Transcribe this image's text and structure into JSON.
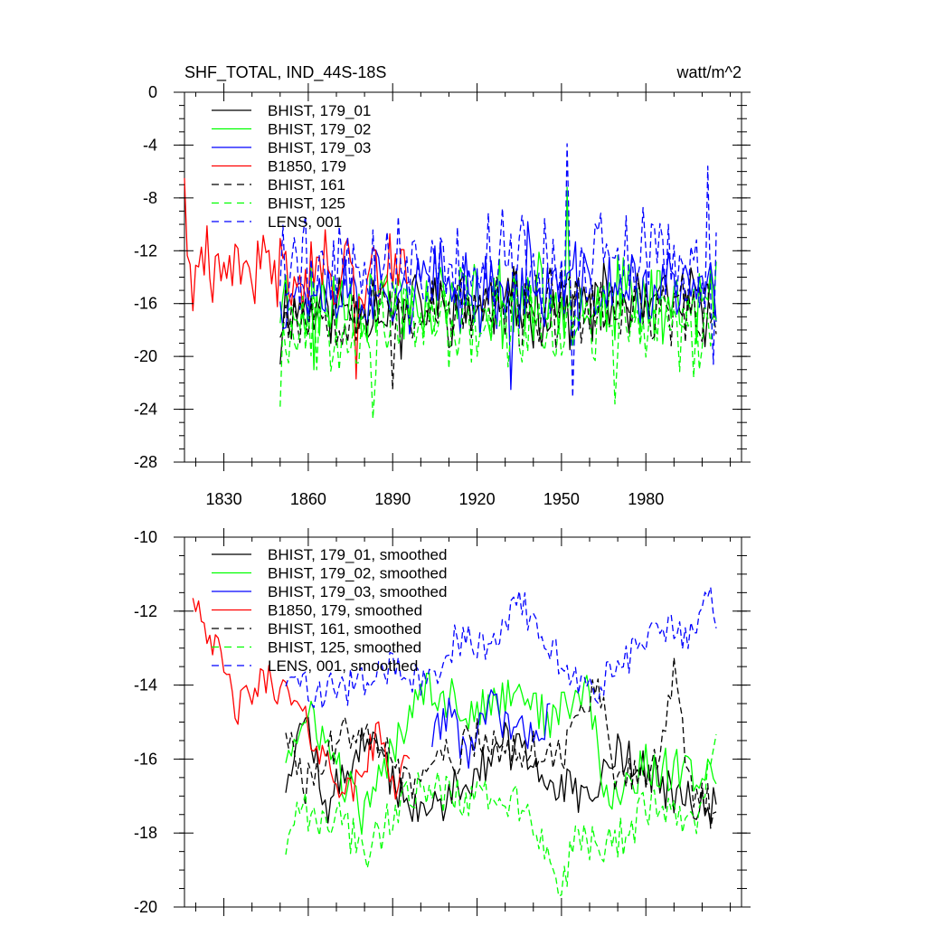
{
  "chart_data": [
    {
      "type": "line",
      "title": "SHF_TOTAL, IND_44S-18S",
      "units": "watt/m^2",
      "xlim": [
        1816,
        2014
      ],
      "ylim": [
        -28,
        0
      ],
      "x_ticks": [
        1830,
        1860,
        1890,
        1920,
        1950,
        1980
      ],
      "x_tick_labels": [
        "1830",
        "1860",
        "1890",
        "1920",
        "1950",
        "1980"
      ],
      "y_ticks": [
        0,
        -4,
        -8,
        -12,
        -16,
        -20,
        -24,
        -28
      ],
      "y_tick_labels": [
        "0",
        "-4",
        "-8",
        "-12",
        "-16",
        "-20",
        "-24",
        "-28"
      ],
      "legend_position": "top-left",
      "series": [
        {
          "name": "BHIST, 179_01",
          "color": "#000000",
          "dashed": false,
          "x_start": 1850,
          "x_end": 2005,
          "mean": -16.2,
          "amplitude": 2.3,
          "seed": 11,
          "peaks": [
            {
              "x": 1850,
              "y": -20.6
            },
            {
              "x": 1893,
              "y": -20.2
            }
          ]
        },
        {
          "name": "BHIST, 179_02",
          "color": "#00ff00",
          "dashed": false,
          "x_start": 1850,
          "x_end": 2005,
          "mean": -15.8,
          "amplitude": 2.6,
          "seed": 23,
          "peaks": [
            {
              "x": 1952,
              "y": -7.2
            },
            {
              "x": 1862,
              "y": -21.0
            }
          ]
        },
        {
          "name": "BHIST, 179_03",
          "color": "#0000ff",
          "dashed": false,
          "x_start": 1850,
          "x_end": 2005,
          "mean": -14.9,
          "amplitude": 2.6,
          "seed": 37,
          "peaks": [
            {
              "x": 1932,
              "y": -22.5
            },
            {
              "x": 1938,
              "y": -9.8
            }
          ]
        },
        {
          "name": "B1850, 179",
          "color": "#ff0000",
          "dashed": false,
          "x_start": 1816,
          "x_end": 1896,
          "mean": -13.5,
          "amplitude": 2.4,
          "seed": 41,
          "peaks": [
            {
              "x": 1816,
              "y": -6.5
            },
            {
              "x": 1877,
              "y": -21.7
            },
            {
              "x": 1826,
              "y": -15.9
            }
          ]
        },
        {
          "name": "BHIST, 161",
          "color": "#000000",
          "dashed": true,
          "x_start": 1850,
          "x_end": 2005,
          "mean": -16.5,
          "amplitude": 2.3,
          "seed": 53,
          "peaks": [
            {
              "x": 1890,
              "y": -22.5
            }
          ]
        },
        {
          "name": "BHIST, 125",
          "color": "#00ff00",
          "dashed": true,
          "x_start": 1850,
          "x_end": 2005,
          "mean": -17.6,
          "amplitude": 2.8,
          "seed": 67,
          "peaks": [
            {
              "x": 1850,
              "y": -23.8
            },
            {
              "x": 1883,
              "y": -24.7
            },
            {
              "x": 1969,
              "y": -23.6
            }
          ]
        },
        {
          "name": "LENS, 001",
          "color": "#0000ff",
          "dashed": true,
          "x_start": 1850,
          "x_end": 2005,
          "mean": -13.0,
          "amplitude": 3.2,
          "seed": 79,
          "peaks": [
            {
              "x": 1952,
              "y": -3.9
            },
            {
              "x": 2002,
              "y": -5.6
            },
            {
              "x": 1954,
              "y": -23.1
            },
            {
              "x": 2004,
              "y": -20.6
            }
          ]
        }
      ]
    },
    {
      "type": "line",
      "title": "",
      "units": "",
      "xlim": [
        1816,
        2014
      ],
      "ylim": [
        -20,
        -10
      ],
      "x_ticks": [
        1830,
        1860,
        1890,
        1920,
        1950,
        1980
      ],
      "x_tick_labels": [],
      "y_ticks": [
        -10,
        -12,
        -14,
        -16,
        -18,
        -20
      ],
      "y_tick_labels": [
        "-10",
        "-12",
        "-14",
        "-16",
        "-18",
        "-20"
      ],
      "legend_position": "top-left",
      "series": [
        {
          "name": "BHIST, 179_01, smoothed",
          "color": "#000000",
          "dashed": false,
          "x_start": 1852,
          "x_end": 2005,
          "mean": -16.3,
          "amplitude": 0.6,
          "seed": 12,
          "anchors": [
            [
              1852,
              -16.6
            ],
            [
              1856,
              -15.2
            ],
            [
              1860,
              -15.0
            ],
            [
              1866,
              -17.4
            ],
            [
              1880,
              -15.4
            ],
            [
              1900,
              -17.6
            ],
            [
              1930,
              -15.6
            ],
            [
              1960,
              -17.3
            ],
            [
              1970,
              -15.7
            ],
            [
              1990,
              -17.0
            ],
            [
              2000,
              -17.4
            ],
            [
              2005,
              -17.3
            ]
          ]
        },
        {
          "name": "BHIST, 179_02, smoothed",
          "color": "#00ff00",
          "dashed": false,
          "x_start": 1852,
          "x_end": 2005,
          "mean": -15.2,
          "amplitude": 0.6,
          "seed": 24,
          "anchors": [
            [
              1852,
              -15.8
            ],
            [
              1862,
              -14.9
            ],
            [
              1870,
              -16.2
            ],
            [
              1880,
              -17.6
            ],
            [
              1900,
              -13.9
            ],
            [
              1920,
              -14.8
            ],
            [
              1935,
              -14.0
            ],
            [
              1945,
              -15.0
            ],
            [
              1960,
              -14.1
            ],
            [
              1965,
              -17.2
            ],
            [
              1980,
              -16.2
            ],
            [
              2005,
              -16.4
            ]
          ]
        },
        {
          "name": "BHIST, 179_03, smoothed",
          "color": "#0000ff",
          "dashed": false,
          "x_start": 1904,
          "x_end": 1946,
          "mean": -15.1,
          "amplitude": 0.55,
          "seed": 38,
          "anchors": [
            [
              1904,
              -15.4
            ],
            [
              1910,
              -14.6
            ],
            [
              1916,
              -15.9
            ],
            [
              1925,
              -14.6
            ],
            [
              1935,
              -15.4
            ],
            [
              1946,
              -14.9
            ]
          ]
        },
        {
          "name": "B1850, 179, smoothed",
          "color": "#ff0000",
          "dashed": false,
          "x_start": 1819,
          "x_end": 1896,
          "mean": -14.8,
          "amplitude": 0.5,
          "seed": 42,
          "anchors": [
            [
              1819,
              -11.4
            ],
            [
              1826,
              -12.8
            ],
            [
              1835,
              -14.7
            ],
            [
              1840,
              -14.2
            ],
            [
              1846,
              -13.8
            ],
            [
              1855,
              -14.5
            ],
            [
              1865,
              -15.9
            ],
            [
              1875,
              -17.0
            ],
            [
              1885,
              -15.3
            ],
            [
              1891,
              -16.7
            ],
            [
              1896,
              -15.7
            ]
          ]
        },
        {
          "name": "BHIST, 161, smoothed",
          "color": "#000000",
          "dashed": true,
          "x_start": 1852,
          "x_end": 2005,
          "mean": -16.0,
          "amplitude": 0.6,
          "seed": 54,
          "anchors": [
            [
              1852,
              -15.0
            ],
            [
              1858,
              -16.9
            ],
            [
              1870,
              -15.6
            ],
            [
              1880,
              -14.9
            ],
            [
              1895,
              -16.7
            ],
            [
              1920,
              -15.5
            ],
            [
              1950,
              -15.9
            ],
            [
              1958,
              -14.6
            ],
            [
              1962,
              -13.8
            ],
            [
              1970,
              -16.8
            ],
            [
              1985,
              -15.9
            ],
            [
              1990,
              -13.4
            ],
            [
              1995,
              -16.7
            ],
            [
              2005,
              -17.5
            ]
          ]
        },
        {
          "name": "BHIST, 125, smoothed",
          "color": "#00ff00",
          "dashed": true,
          "x_start": 1852,
          "x_end": 2005,
          "mean": -17.3,
          "amplitude": 0.6,
          "seed": 68,
          "anchors": [
            [
              1852,
              -18.3
            ],
            [
              1855,
              -17.4
            ],
            [
              1870,
              -17.6
            ],
            [
              1880,
              -18.6
            ],
            [
              1895,
              -16.8
            ],
            [
              1920,
              -17.0
            ],
            [
              1935,
              -17.3
            ],
            [
              1950,
              -19.3
            ],
            [
              1956,
              -18.2
            ],
            [
              1965,
              -18.6
            ],
            [
              1980,
              -17.4
            ],
            [
              2000,
              -17.5
            ],
            [
              2005,
              -15.0
            ]
          ]
        },
        {
          "name": "LENS, 001, smoothed",
          "color": "#0000ff",
          "dashed": true,
          "x_start": 1852,
          "x_end": 2005,
          "mean": -13.0,
          "amplitude": 0.5,
          "seed": 80,
          "anchors": [
            [
              1852,
              -13.8
            ],
            [
              1862,
              -14.2
            ],
            [
              1880,
              -14.0
            ],
            [
              1890,
              -13.5
            ],
            [
              1905,
              -14.1
            ],
            [
              1912,
              -12.8
            ],
            [
              1925,
              -12.9
            ],
            [
              1935,
              -11.7
            ],
            [
              1950,
              -13.4
            ],
            [
              1960,
              -14.2
            ],
            [
              1975,
              -13.2
            ],
            [
              1985,
              -12.4
            ],
            [
              1995,
              -12.8
            ],
            [
              2002,
              -11.2
            ],
            [
              2005,
              -12.9
            ]
          ]
        }
      ]
    }
  ]
}
